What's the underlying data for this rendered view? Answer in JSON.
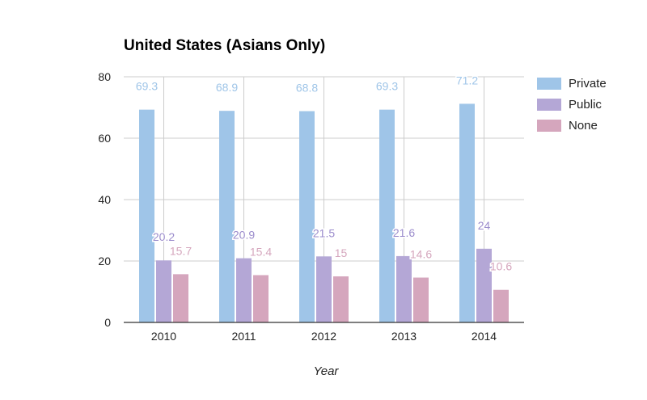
{
  "chart_data": {
    "type": "bar",
    "title": "United States (Asians Only)",
    "xlabel": "Year",
    "ylabel": "",
    "categories": [
      "2010",
      "2011",
      "2012",
      "2013",
      "2014"
    ],
    "ylim": [
      0,
      80
    ],
    "yticks": [
      "0",
      "20",
      "40",
      "60",
      "80"
    ],
    "grid": true,
    "legend_position": "right",
    "series": [
      {
        "name": "Private",
        "color": "#9fc5e8",
        "label_color": "#9fc5e8",
        "values": [
          69.3,
          68.9,
          68.8,
          69.3,
          71.2
        ],
        "labels": [
          "69.3",
          "68.9",
          "68.8",
          "69.3",
          "71.2"
        ]
      },
      {
        "name": "Public",
        "color": "#b4a7d6",
        "label_color": "#9b8ccc",
        "values": [
          20.2,
          20.9,
          21.5,
          21.6,
          24
        ],
        "labels": [
          "20.2",
          "20.9",
          "21.5",
          "21.6",
          "24"
        ]
      },
      {
        "name": "None",
        "color": "#d5a6bd",
        "label_color": "#d5a6bd",
        "values": [
          15.7,
          15.4,
          15,
          14.6,
          10.6
        ],
        "labels": [
          "15.7",
          "15.4",
          "15",
          "14.6",
          "10.6"
        ]
      }
    ]
  }
}
